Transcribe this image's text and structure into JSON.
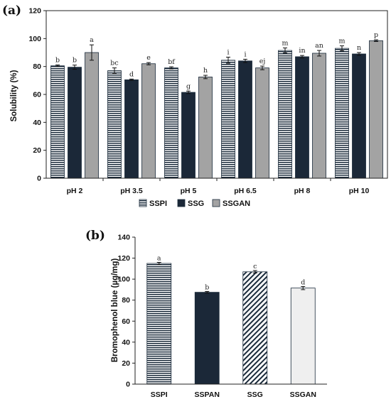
{
  "chart_data": [
    {
      "type": "bar",
      "panel_label": "(a)",
      "ylabel": "Solubility (%)",
      "ylim": [
        0,
        120
      ],
      "yticks": [
        "0",
        "20",
        "40",
        "60",
        "80",
        "100",
        "120"
      ],
      "grid": false,
      "legend_position": "bottom-center",
      "categories": [
        "pH 2",
        "pH 3.5",
        "pH 5",
        "pH 6.5",
        "pH 8",
        "pH 10"
      ],
      "series": [
        {
          "name": "SSPI",
          "pattern": "horizontal-stripes",
          "color": "#1a2a3a",
          "values": [
            80.5,
            77,
            79,
            84.5,
            91.5,
            93
          ],
          "errors": [
            0.6,
            2,
            0.8,
            2.2,
            1.8,
            1.8
          ],
          "letters": [
            "b",
            "bc",
            "bf",
            "i",
            "m",
            "m"
          ]
        },
        {
          "name": "SSG",
          "pattern": "solid",
          "color": "#1b2838",
          "values": [
            79.5,
            70.5,
            61.5,
            84,
            87,
            89
          ],
          "errors": [
            1.5,
            0.5,
            0.9,
            1.2,
            0.9,
            1
          ],
          "letters": [
            "b",
            "d",
            "g",
            "i",
            "in",
            "n"
          ]
        },
        {
          "name": "SSGAN",
          "pattern": "solid",
          "color": "#a3a3a3",
          "values": [
            90,
            82,
            72.5,
            79,
            89.5,
            98.5
          ],
          "errors": [
            5.5,
            0.8,
            1.2,
            1.3,
            2,
            0.6
          ],
          "letters": [
            "a",
            "e",
            "h",
            "ej",
            "an",
            "p"
          ]
        }
      ]
    },
    {
      "type": "bar",
      "panel_label": "(b)",
      "ylabel": "Bromophenol blue (µg/mg)",
      "ylim": [
        0,
        140
      ],
      "yticks": [
        "0",
        "20",
        "40",
        "60",
        "80",
        "100",
        "120",
        "140"
      ],
      "grid": false,
      "categories": [
        "SSPI",
        "SSPAN",
        "SSG",
        "SSGAN"
      ],
      "values": [
        115,
        87.5,
        107,
        91.5
      ],
      "errors": [
        1,
        0.8,
        1.2,
        1.5
      ],
      "letters": [
        "a",
        "b",
        "c",
        "d"
      ],
      "patterns": [
        "horizontal-stripes",
        "solid",
        "diagonal-stripes",
        "light-solid"
      ],
      "colors": [
        "#1a2a3a",
        "#1b2838",
        "#1a2a3a",
        "#efefef"
      ]
    }
  ]
}
